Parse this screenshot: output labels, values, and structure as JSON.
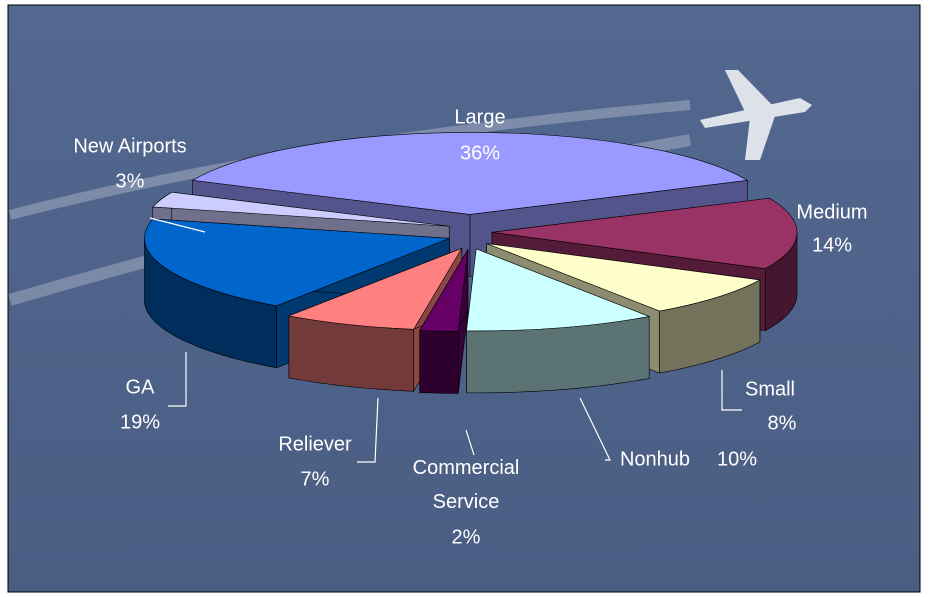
{
  "chart_data": {
    "type": "pie3d",
    "categories": [
      "Large",
      "Medium",
      "Small",
      "Nonhub",
      "Commercial Service",
      "Reliever",
      "GA",
      "New Airports"
    ],
    "values": [
      36,
      14,
      8,
      10,
      2,
      7,
      19,
      3
    ],
    "value_labels": [
      "36%",
      "14%",
      "8%",
      "10%",
      "2%",
      "7%",
      "19%",
      "3%"
    ],
    "colors": [
      "#9999ff",
      "#993366",
      "#ffffcc",
      "#ccffff",
      "#660066",
      "#ff8080",
      "#0066cc",
      "#ccccff"
    ]
  }
}
